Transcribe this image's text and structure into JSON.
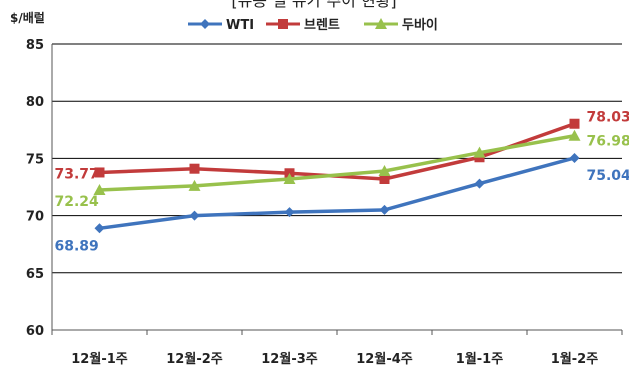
{
  "title": "[유종 별 유가 추이 현황]",
  "colors": {
    "WTI": "#3f74bd",
    "브렌트": "#c23b3b",
    "두바이": "#98c14c",
    "axis": "#555555",
    "grid": "#000000"
  },
  "chart_data": {
    "type": "line",
    "title": "[유종 별 유가 추이 현황]",
    "ylabel": "$/배럴",
    "xlabel": "",
    "categories": [
      "12월-1주",
      "12월-2주",
      "12월-3주",
      "12월-4주",
      "1월-1주",
      "1월-2주"
    ],
    "ylim": [
      60,
      85
    ],
    "yticks": [
      60,
      65,
      70,
      75,
      80,
      85
    ],
    "grid": "horizontal",
    "legend": "top-center",
    "series": [
      {
        "name": "WTI",
        "marker": "diamond",
        "values": [
          68.89,
          70.0,
          70.3,
          70.5,
          72.8,
          75.04
        ],
        "labels": [
          "68.89",
          null,
          null,
          null,
          null,
          "75.04"
        ]
      },
      {
        "name": "브렌트",
        "marker": "square",
        "values": [
          73.77,
          74.1,
          73.7,
          73.2,
          75.1,
          78.03
        ],
        "labels": [
          "73.77",
          null,
          null,
          null,
          null,
          "78.03"
        ]
      },
      {
        "name": "두바이",
        "marker": "triangle",
        "values": [
          72.24,
          72.6,
          73.2,
          73.9,
          75.5,
          76.98
        ],
        "labels": [
          "72.24",
          null,
          null,
          null,
          null,
          "76.98"
        ]
      }
    ]
  }
}
